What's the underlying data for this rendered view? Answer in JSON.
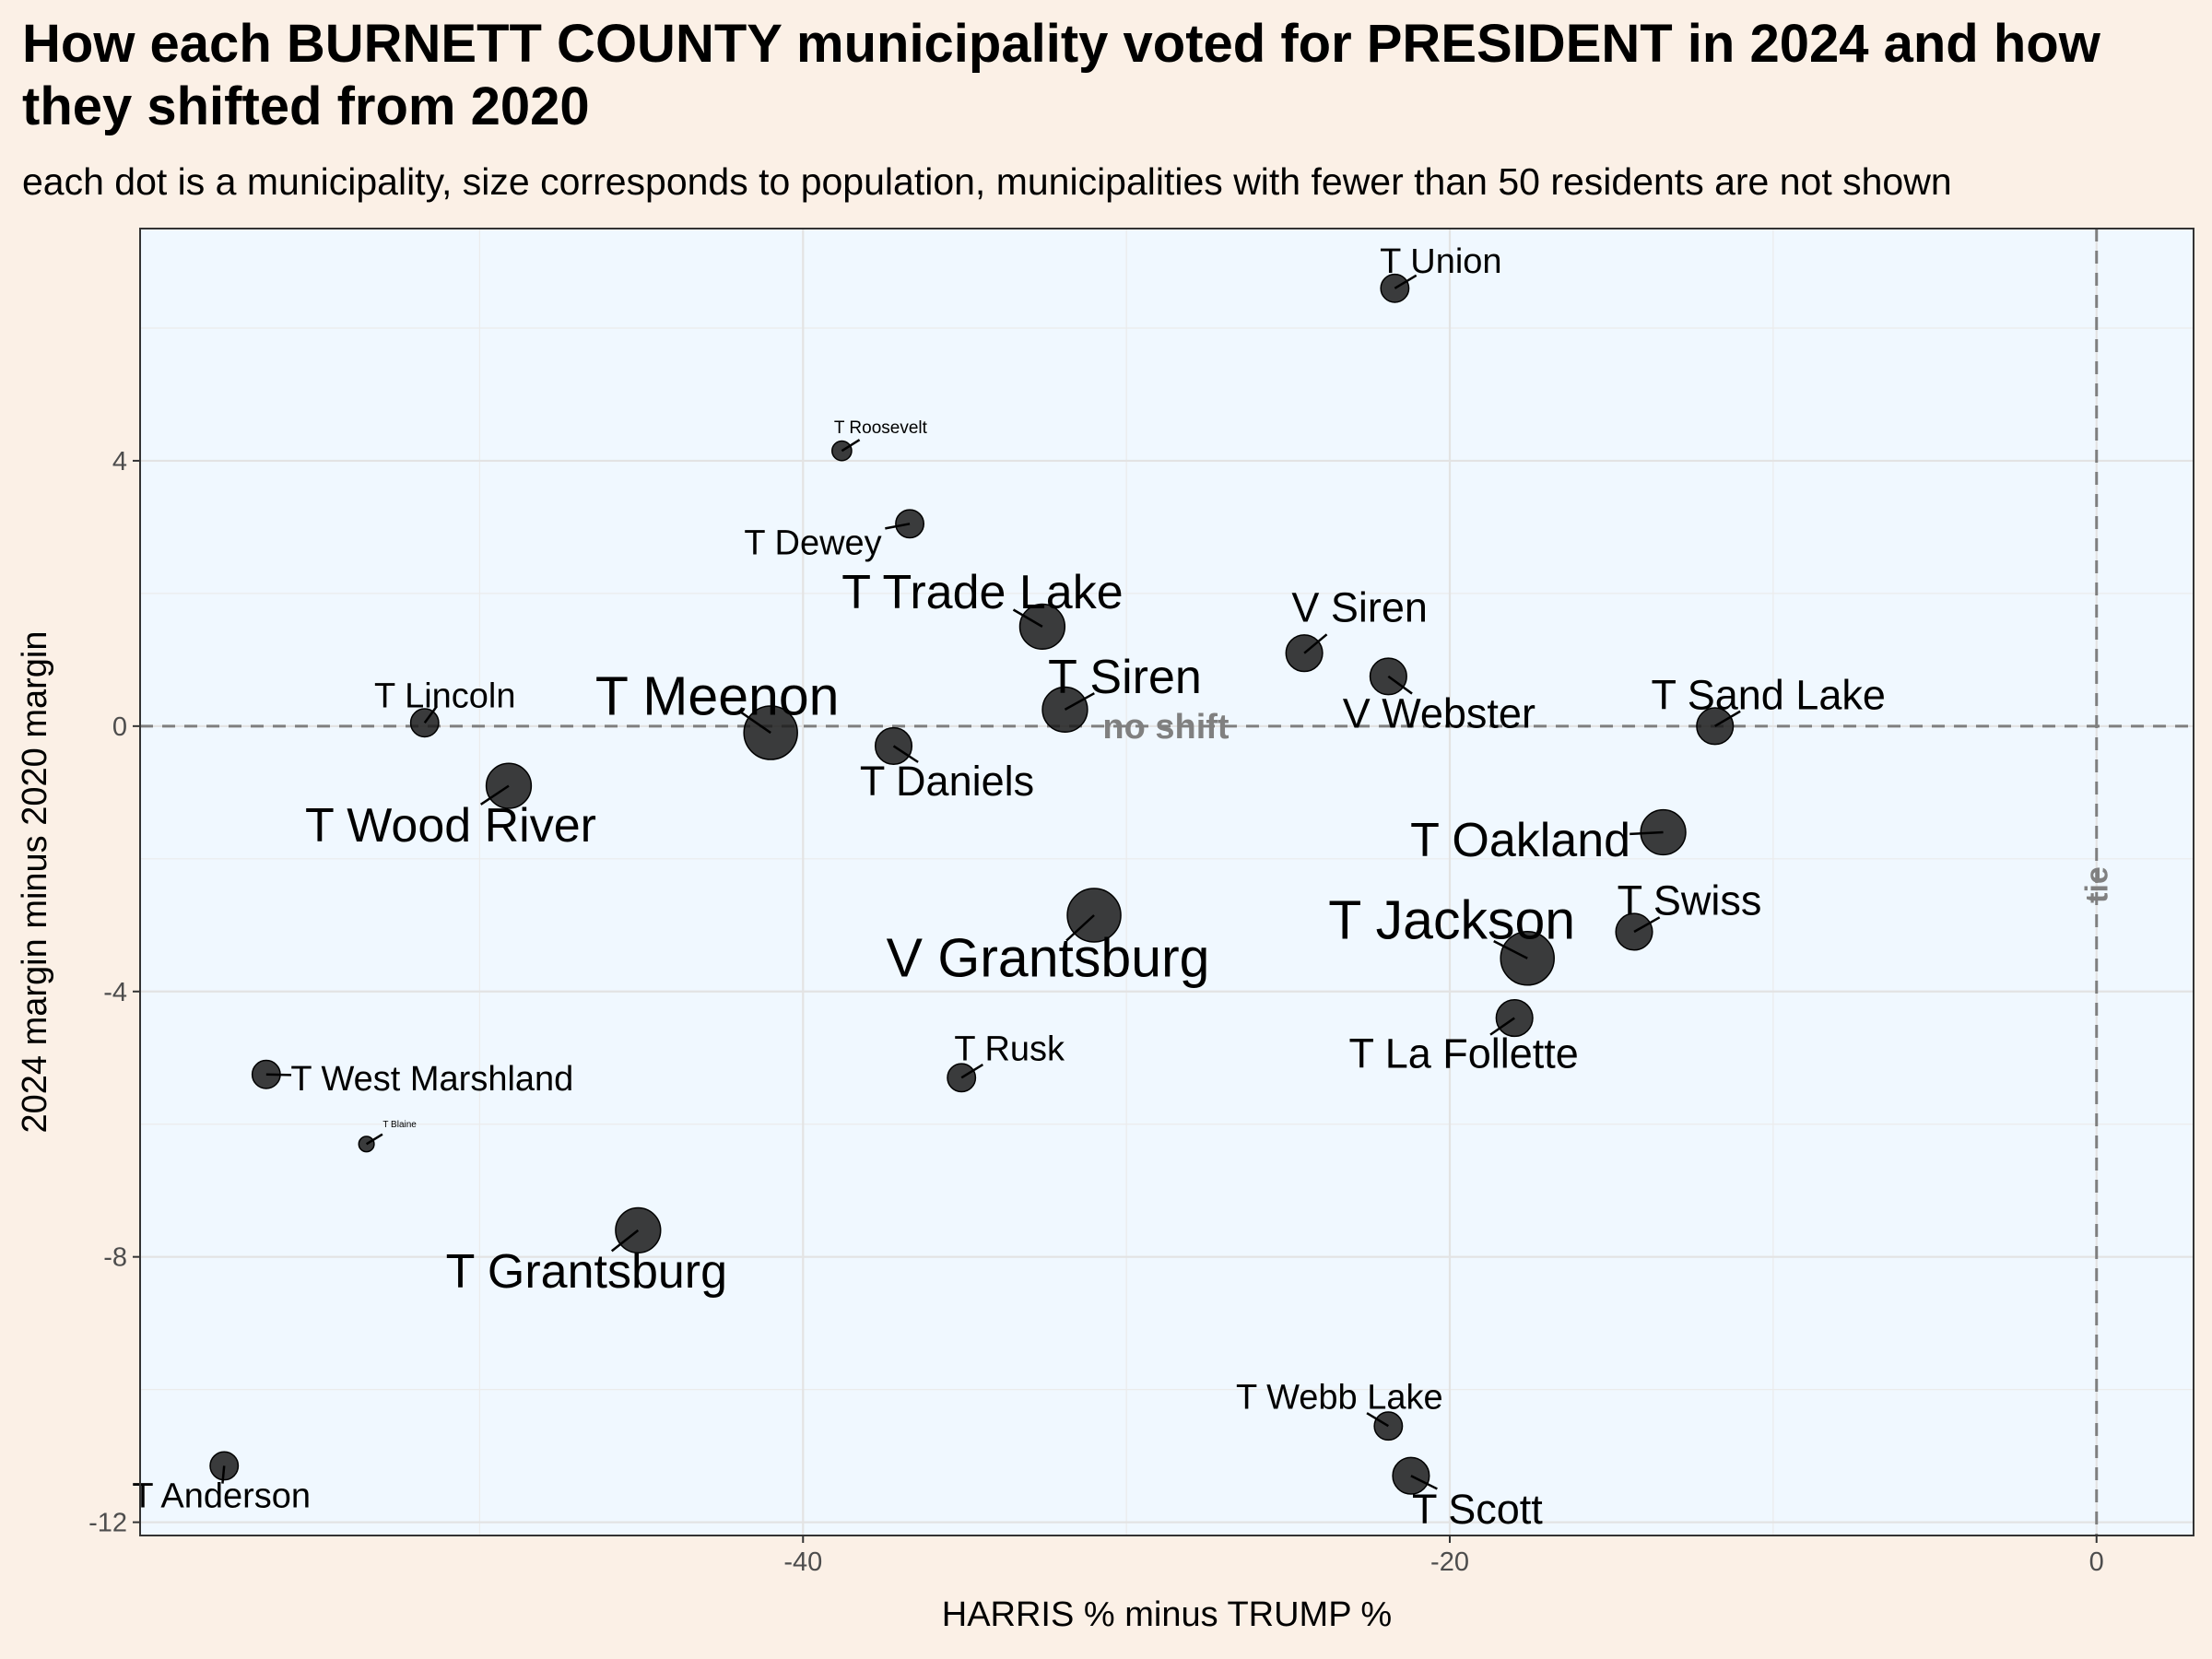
{
  "title": "How each BURNETT COUNTY municipality voted for PRESIDENT in 2024 and how they shifted from 2020",
  "subtitle": "each dot is a municipality, size corresponds to population, municipalities with fewer than 50 residents are not shown",
  "chart_data": {
    "type": "scatter",
    "xlabel": "HARRIS % minus TRUMP %",
    "ylabel": "2024 margin minus 2020 margin",
    "xlim": [
      -60.5,
      3
    ],
    "ylim": [
      -12.2,
      7.5
    ],
    "xticks": [
      -40,
      -20,
      0
    ],
    "yticks": [
      -12,
      -8,
      -4,
      0,
      4
    ],
    "grid": true,
    "reference_lines": [
      {
        "axis": "y",
        "value": 0,
        "label": "no shift"
      },
      {
        "axis": "x",
        "value": 0,
        "label": "tie"
      }
    ],
    "size_encodes": "population",
    "points": [
      {
        "label": "T Union",
        "x": -21.7,
        "y": 6.6,
        "size": 2
      },
      {
        "label": "T Roosevelt",
        "x": -38.8,
        "y": 4.15,
        "size": 1
      },
      {
        "label": "T Dewey",
        "x": -36.7,
        "y": 3.05,
        "size": 2
      },
      {
        "label": "T Trade Lake",
        "x": -32.6,
        "y": 1.5,
        "size": 4
      },
      {
        "label": "V Siren",
        "x": -24.5,
        "y": 1.1,
        "size": 3
      },
      {
        "label": "V Webster",
        "x": -21.9,
        "y": 0.75,
        "size": 3
      },
      {
        "label": "T Siren",
        "x": -31.9,
        "y": 0.25,
        "size": 4
      },
      {
        "label": "T Lincoln",
        "x": -51.7,
        "y": 0.05,
        "size": 2
      },
      {
        "label": "T Meenon",
        "x": -41.0,
        "y": -0.1,
        "size": 5
      },
      {
        "label": "T Sand Lake",
        "x": -11.8,
        "y": 0.0,
        "size": 3
      },
      {
        "label": "T Daniels",
        "x": -37.2,
        "y": -0.3,
        "size": 3
      },
      {
        "label": "T Wood River",
        "x": -49.1,
        "y": -0.9,
        "size": 4
      },
      {
        "label": "T Oakland",
        "x": -13.4,
        "y": -1.6,
        "size": 4
      },
      {
        "label": "V Grantsburg",
        "x": -31.0,
        "y": -2.85,
        "size": 5
      },
      {
        "label": "T Swiss",
        "x": -14.3,
        "y": -3.1,
        "size": 3
      },
      {
        "label": "T Jackson",
        "x": -17.6,
        "y": -3.5,
        "size": 5
      },
      {
        "label": "T La Follette",
        "x": -18.0,
        "y": -4.4,
        "size": 3
      },
      {
        "label": "T West Marshland",
        "x": -56.6,
        "y": -5.25,
        "size": 2
      },
      {
        "label": "T Rusk",
        "x": -35.1,
        "y": -5.3,
        "size": 2
      },
      {
        "label": "T Blaine",
        "x": -53.5,
        "y": -6.3,
        "size": 0.5
      },
      {
        "label": "T Grantsburg",
        "x": -45.1,
        "y": -7.6,
        "size": 4
      },
      {
        "label": "T Webb Lake",
        "x": -21.9,
        "y": -10.55,
        "size": 2
      },
      {
        "label": "T Scott",
        "x": -21.2,
        "y": -11.3,
        "size": 3
      },
      {
        "label": "T Anderson",
        "x": -57.9,
        "y": -11.15,
        "size": 2
      }
    ]
  }
}
